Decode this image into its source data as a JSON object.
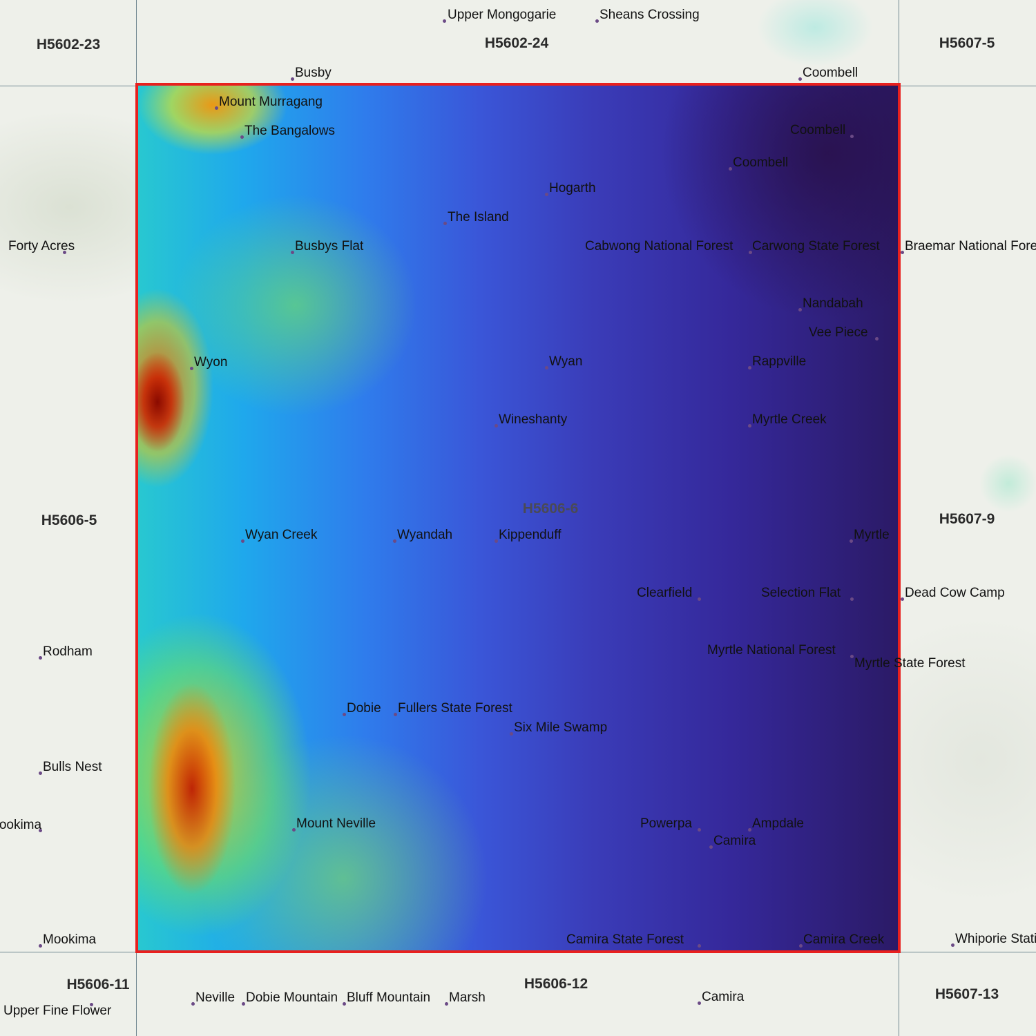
{
  "map": {
    "highlighted_sheet": "H5606-6",
    "colors": {
      "outline": "#e8201e",
      "grid": "#6f8690",
      "place_dot": "#6b4a86"
    },
    "elevation_colormap": [
      "#2b1a66",
      "#3a3cb8",
      "#2f7cec",
      "#28c8d0",
      "#8ee05a",
      "#f2e418",
      "#f08a00",
      "#c81e00",
      "#8a0a00"
    ],
    "sheet_labels": [
      "H5602-23",
      "H5602-24",
      "H5607-5",
      "H5606-5",
      "H5606-6",
      "H5607-9",
      "H5606-11",
      "H5606-12",
      "H5607-13"
    ],
    "places": [
      "Upper Mongogarie",
      "Sheans Crossing",
      "Busby",
      "Coombell",
      "Mount Murragang",
      "The Bangalows",
      "Coombell",
      "Coombell",
      "Hogarth",
      "The Island",
      "Forty Acres",
      "Busbys Flat",
      "Cabwong National Forest",
      "Carwong State Forest",
      "Braemar National Forest",
      "Nandabah",
      "Vee Piece",
      "Wyon",
      "Wyan",
      "Rappville",
      "Wineshanty",
      "Myrtle Creek",
      "Wyan Creek",
      "Wyandah",
      "Kippenduff",
      "Myrtle",
      "Clearfield",
      "Selection Flat",
      "Dead Cow Camp",
      "Rodham",
      "Myrtle National Forest",
      "Myrtle State Forest",
      "Dobie",
      "Fullers State Forest",
      "Six Mile Swamp",
      "Bulls Nest",
      "Mookima",
      "Mount Neville",
      "Powerpa",
      "Ampdale",
      "Camira",
      "Mookima",
      "Camira State Forest",
      "Camira Creek",
      "Whiporie Station",
      "Neville",
      "Dobie Mountain",
      "Bluff Mountain",
      "Marsh",
      "Camira",
      "Upper Fine Flower"
    ]
  }
}
